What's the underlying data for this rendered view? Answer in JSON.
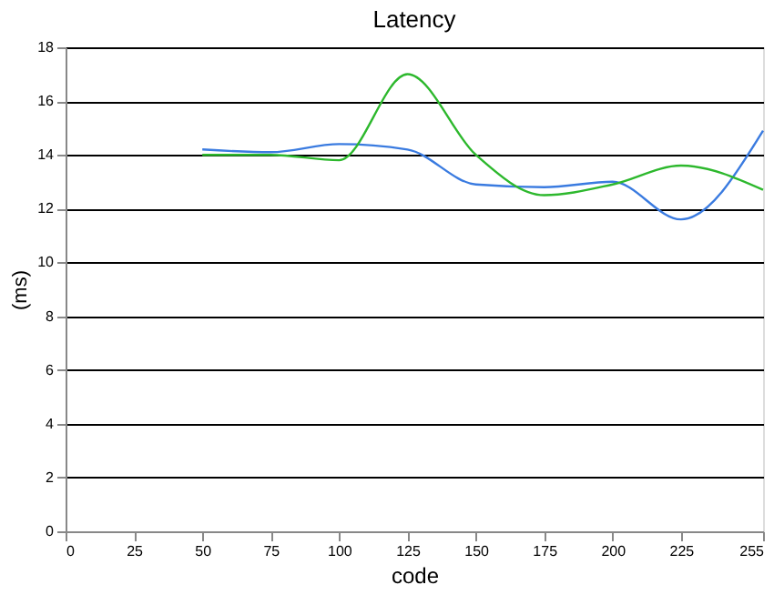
{
  "chart_data": {
    "type": "line",
    "title": "Latency",
    "xlabel": "code",
    "ylabel": "(ms)",
    "x": [
      50,
      75,
      100,
      125,
      150,
      175,
      200,
      225,
      255
    ],
    "series": [
      {
        "color": "#3a7be0",
        "values": [
          14.2,
          14.1,
          14.4,
          14.2,
          12.9,
          12.8,
          13.0,
          11.6,
          14.9
        ]
      },
      {
        "color": "#2db82d",
        "values": [
          14.0,
          14.0,
          13.8,
          17.0,
          14.0,
          12.5,
          12.9,
          13.6,
          12.7
        ]
      }
    ],
    "xlim": [
      0,
      255
    ],
    "xticks": [
      0,
      25,
      50,
      75,
      100,
      125,
      150,
      175,
      200,
      225,
      255
    ],
    "ylim": [
      0,
      18
    ],
    "yticks": [
      0,
      2,
      4,
      6,
      8,
      10,
      12,
      14,
      16,
      18
    ],
    "grid": "y",
    "marker": "none",
    "line_style": "solid"
  }
}
